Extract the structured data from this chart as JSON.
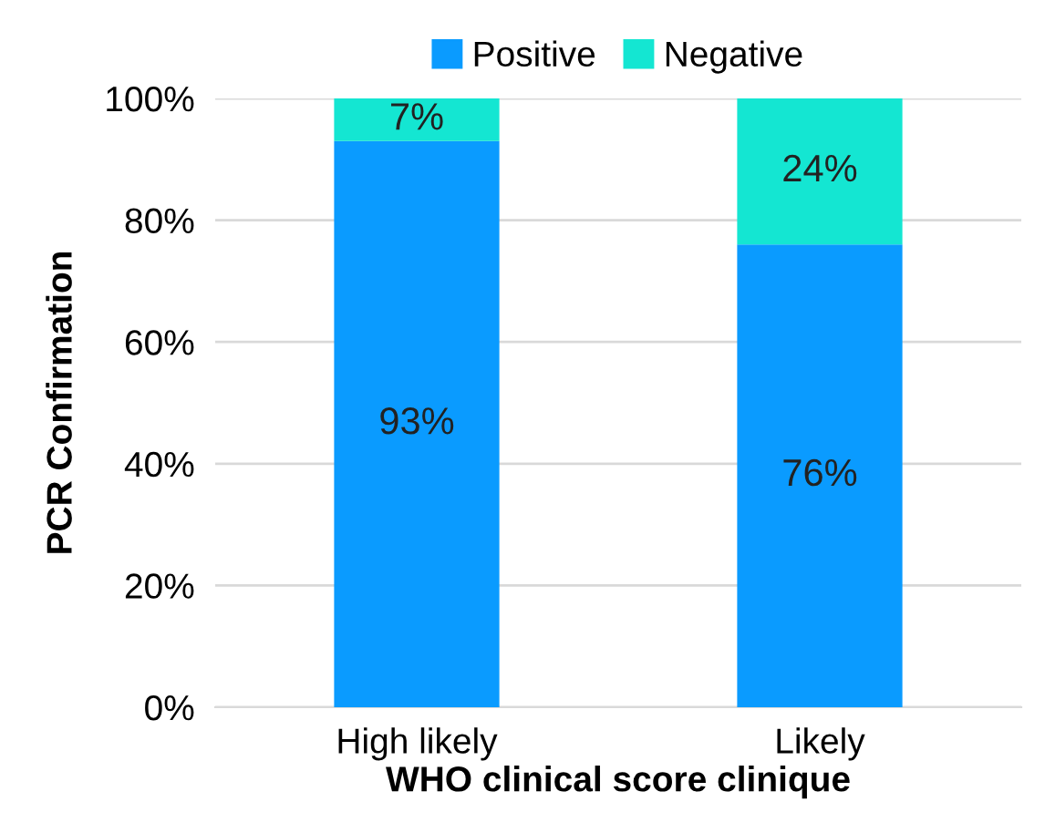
{
  "chart_data": {
    "type": "bar",
    "stacked": true,
    "xlabel": "WHO clinical score clinique",
    "ylabel": "PCR Confirmation",
    "categories": [
      "High likely",
      "Likely"
    ],
    "series": [
      {
        "name": "Positive",
        "color": "#0a9bff",
        "values": [
          93,
          76
        ],
        "value_labels": [
          "93%",
          "76%"
        ]
      },
      {
        "name": "Negative",
        "color": "#14e6d2",
        "values": [
          7,
          24
        ],
        "value_labels": [
          "7%",
          "24%"
        ]
      }
    ],
    "ylim": [
      0,
      100
    ],
    "yticks": [
      {
        "value": 0,
        "label": "0%"
      },
      {
        "value": 20,
        "label": "20%"
      },
      {
        "value": 40,
        "label": "40%"
      },
      {
        "value": 60,
        "label": "60%"
      },
      {
        "value": 80,
        "label": "80%"
      },
      {
        "value": 100,
        "label": "100%"
      }
    ],
    "grid": "y",
    "legend": "top"
  }
}
